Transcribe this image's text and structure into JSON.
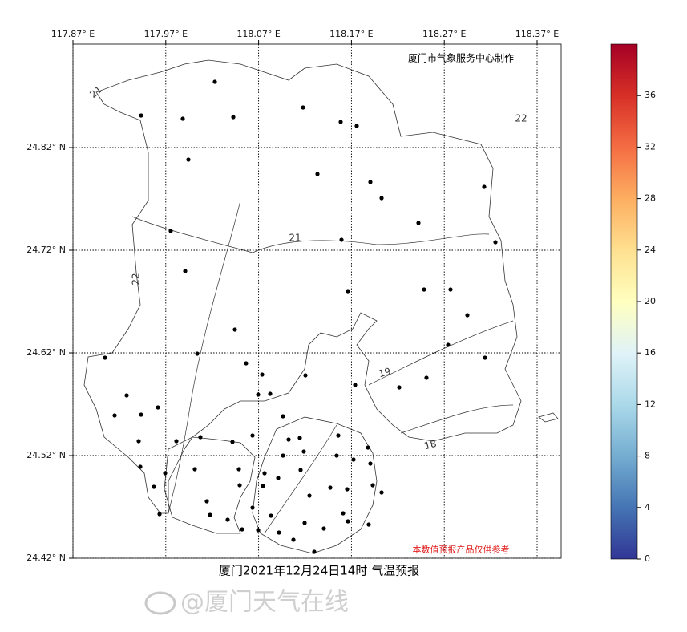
{
  "map": {
    "credit": "厦门市气象服务中心制作",
    "note": "本数值预报产品仅供参考",
    "title": "厦门2021年12月24日14时  气温预报",
    "watermark": "@厦门天气在线",
    "xticks": [
      {
        "value": 117.87,
        "label": "117.87° E"
      },
      {
        "value": 117.97,
        "label": "117.97° E"
      },
      {
        "value": 118.07,
        "label": "118.07° E"
      },
      {
        "value": 118.17,
        "label": "118.17° E"
      },
      {
        "value": 118.27,
        "label": "118.27° E"
      },
      {
        "value": 118.37,
        "label": "118.37° E"
      }
    ],
    "yticks": [
      {
        "value": 24.82,
        "label": "24.82° N"
      },
      {
        "value": 24.72,
        "label": "24.72° N"
      },
      {
        "value": 24.62,
        "label": "24.62° N"
      },
      {
        "value": 24.52,
        "label": "24.52° N"
      },
      {
        "value": 24.42,
        "label": "24.42° N"
      }
    ],
    "contour_labels": [
      21,
      22,
      21,
      22,
      19,
      18
    ],
    "colorbar": {
      "lim": [
        0,
        40
      ],
      "ticks": [
        0,
        4,
        8,
        12,
        16,
        20,
        24,
        28,
        32,
        36
      ]
    }
  }
}
